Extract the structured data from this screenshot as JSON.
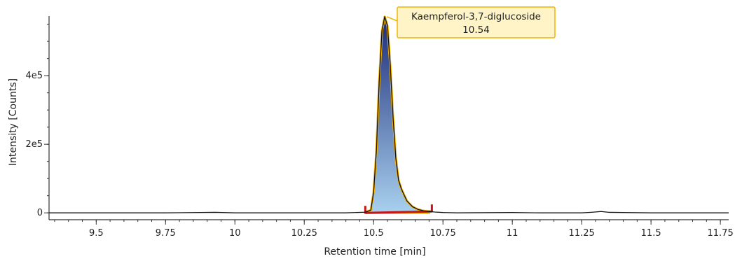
{
  "chart_data": {
    "type": "line",
    "title": "",
    "xlabel": "Retention time [min]",
    "ylabel": "Intensity [Counts]",
    "xlim": [
      9.33,
      11.78
    ],
    "ylim": [
      -20000,
      590000
    ],
    "x_ticks": [
      9.5,
      9.75,
      10,
      10.25,
      10.5,
      10.75,
      11,
      11.25,
      11.5,
      11.75
    ],
    "x_tick_labels": [
      "9.5",
      "9.75",
      "10",
      "10.25",
      "10.5",
      "10.75",
      "11",
      "11.25",
      "11.5",
      "11.75"
    ],
    "y_ticks": [
      0,
      200000,
      400000
    ],
    "y_tick_labels": [
      "0",
      "2e5",
      "4e5"
    ],
    "grid": false,
    "series": [
      {
        "x": [
          9.33,
          9.5,
          9.75,
          9.93,
          10.0,
          10.25,
          10.4,
          10.47,
          10.49,
          10.5,
          10.51,
          10.52,
          10.53,
          10.54,
          10.55,
          10.56,
          10.57,
          10.58,
          10.59,
          10.6,
          10.61,
          10.62,
          10.64,
          10.66,
          10.68,
          10.7,
          10.72,
          10.75,
          10.8,
          11.0,
          11.1,
          11.25,
          11.29,
          11.32,
          11.35,
          11.5,
          11.78
        ],
        "y": [
          0,
          0,
          0,
          1500,
          0,
          0,
          0,
          2000,
          8000,
          60000,
          180000,
          380000,
          530000,
          572000,
          545000,
          430000,
          280000,
          160000,
          95000,
          70000,
          52000,
          35000,
          18000,
          10000,
          6000,
          4000,
          2500,
          1000,
          0,
          1000,
          0,
          0,
          2000,
          4000,
          1500,
          0,
          0
        ]
      }
    ],
    "peak": {
      "name": "Kaempferol-3,7-diglucoside",
      "rt_label": "10.54",
      "x": 10.54,
      "y": 572000,
      "integration_start": 10.47,
      "integration_end": 10.71,
      "fill_top_color": "#1c2b78",
      "fill_bottom_color": "#a8d0ee",
      "outline_color": "#f2b400",
      "baseline_color": "#c0161c",
      "label_bg_color": "#fff4c8",
      "label_border_color": "#f2b400"
    }
  }
}
